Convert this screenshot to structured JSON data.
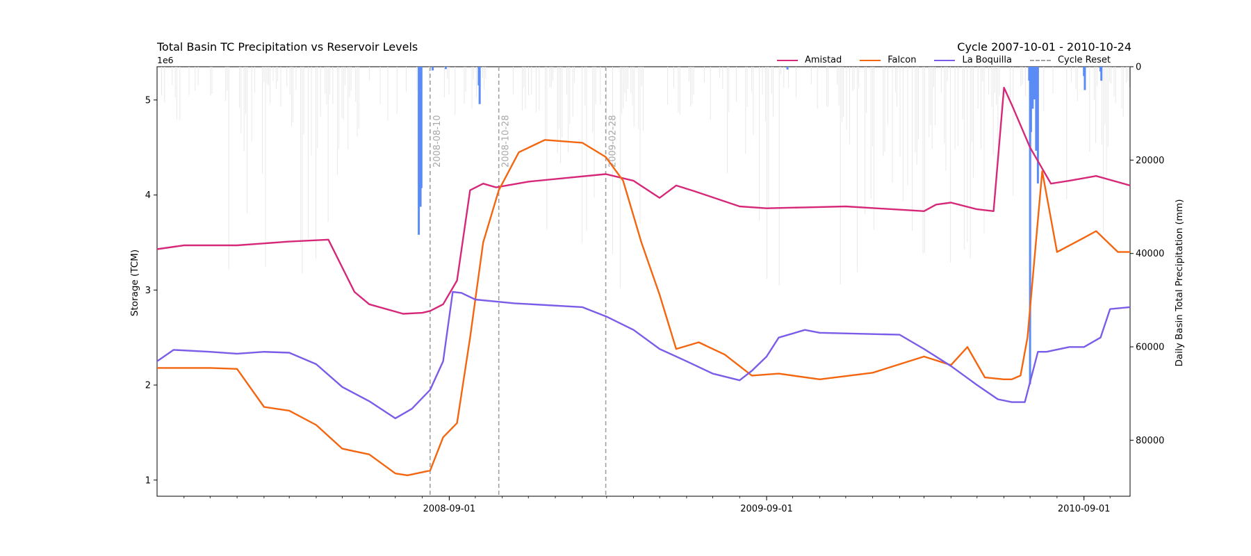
{
  "chart_data": {
    "type": "line",
    "title": "Total Basin TC Precipitation vs Reservoir Levels",
    "cycle_title": "Cycle 2007-10-01 - 2010-10-24",
    "ylabel": "Storage (TCM)",
    "ylabel_right": "Daily Basin Total Precipitation (mm)",
    "y_exponent_label": "1e6",
    "xlim": [
      "2007-10-01",
      "2010-10-24"
    ],
    "ylim": [
      0.83,
      5.35
    ],
    "ylim_right": [
      92000,
      0
    ],
    "x_ticks": [
      "2008-09-01",
      "2009-09-01",
      "2010-09-01"
    ],
    "y_ticks": [
      "1",
      "2",
      "3",
      "4",
      "5"
    ],
    "y_ticks_right": [
      "0",
      "20000",
      "40000",
      "60000",
      "80000"
    ],
    "legend_position": "top-right",
    "series": [
      {
        "name": "Amistad",
        "color": "#d62778",
        "x": [
          "2007-10-01",
          "2007-11-01",
          "2008-01-01",
          "2008-03-01",
          "2008-04-15",
          "2008-05-15",
          "2008-06-01",
          "2008-07-10",
          "2008-08-01",
          "2008-08-10",
          "2008-08-25",
          "2008-09-10",
          "2008-09-25",
          "2008-10-10",
          "2008-10-25",
          "2008-12-01",
          "2009-02-28",
          "2009-04-01",
          "2009-05-01",
          "2009-05-20",
          "2009-06-10",
          "2009-08-01",
          "2009-09-01",
          "2009-10-15",
          "2009-12-01",
          "2010-03-01",
          "2010-03-15",
          "2010-04-01",
          "2010-05-01",
          "2010-05-20",
          "2010-06-01",
          "2010-06-10",
          "2010-07-01",
          "2010-07-25",
          "2010-08-15",
          "2010-09-15",
          "2010-10-24"
        ],
        "values": [
          3.43,
          3.47,
          3.47,
          3.51,
          3.53,
          2.98,
          2.85,
          2.75,
          2.76,
          2.78,
          2.85,
          3.1,
          4.05,
          4.12,
          4.08,
          4.14,
          4.22,
          4.15,
          3.97,
          4.1,
          4.04,
          3.88,
          3.86,
          3.87,
          3.88,
          3.83,
          3.9,
          3.92,
          3.85,
          3.83,
          5.13,
          4.95,
          4.5,
          4.12,
          4.15,
          4.2,
          4.1
        ]
      },
      {
        "name": "Falcon",
        "color": "#f4650f",
        "x": [
          "2007-10-01",
          "2007-12-01",
          "2008-01-01",
          "2008-02-01",
          "2008-03-01",
          "2008-04-01",
          "2008-05-01",
          "2008-06-01",
          "2008-07-01",
          "2008-07-15",
          "2008-08-10",
          "2008-08-25",
          "2008-09-10",
          "2008-09-25",
          "2008-10-10",
          "2008-10-28",
          "2008-11-20",
          "2008-12-20",
          "2009-02-01",
          "2009-02-28",
          "2009-03-20",
          "2009-04-10",
          "2009-05-01",
          "2009-05-20",
          "2009-06-15",
          "2009-07-15",
          "2009-08-15",
          "2009-09-15",
          "2009-11-01",
          "2010-01-01",
          "2010-03-01",
          "2010-04-01",
          "2010-04-20",
          "2010-05-10",
          "2010-06-01",
          "2010-06-10",
          "2010-06-20",
          "2010-06-28",
          "2010-07-15",
          "2010-08-01",
          "2010-09-01",
          "2010-09-15",
          "2010-10-10",
          "2010-10-24"
        ],
        "values": [
          2.18,
          2.18,
          2.17,
          1.77,
          1.73,
          1.58,
          1.33,
          1.27,
          1.07,
          1.05,
          1.1,
          1.45,
          1.6,
          2.5,
          3.5,
          4.05,
          4.45,
          4.58,
          4.55,
          4.4,
          4.15,
          3.5,
          2.95,
          2.38,
          2.45,
          2.32,
          2.1,
          2.12,
          2.06,
          2.13,
          2.3,
          2.21,
          2.4,
          2.08,
          2.06,
          2.06,
          2.1,
          2.5,
          4.25,
          3.4,
          3.55,
          3.62,
          3.4,
          3.4
        ]
      },
      {
        "name": "La Boquilla",
        "color": "#7b5ce8",
        "x": [
          "2007-10-01",
          "2007-10-20",
          "2007-12-01",
          "2008-01-01",
          "2008-02-01",
          "2008-03-01",
          "2008-04-01",
          "2008-05-01",
          "2008-06-01",
          "2008-07-01",
          "2008-07-20",
          "2008-08-10",
          "2008-08-25",
          "2008-09-05",
          "2008-09-15",
          "2008-10-01",
          "2008-11-15",
          "2009-02-01",
          "2009-03-01",
          "2009-04-01",
          "2009-05-01",
          "2009-06-01",
          "2009-07-01",
          "2009-08-01",
          "2009-08-15",
          "2009-09-01",
          "2009-09-15",
          "2009-10-15",
          "2009-11-01",
          "2010-02-01",
          "2010-03-01",
          "2010-04-01",
          "2010-05-01",
          "2010-05-25",
          "2010-06-10",
          "2010-06-25",
          "2010-07-10",
          "2010-07-20",
          "2010-08-15",
          "2010-09-01",
          "2010-09-20",
          "2010-10-01",
          "2010-10-24"
        ],
        "values": [
          2.25,
          2.37,
          2.35,
          2.33,
          2.35,
          2.34,
          2.22,
          1.98,
          1.83,
          1.65,
          1.75,
          1.95,
          2.25,
          2.98,
          2.97,
          2.9,
          2.86,
          2.82,
          2.72,
          2.58,
          2.38,
          2.25,
          2.12,
          2.05,
          2.15,
          2.3,
          2.5,
          2.58,
          2.55,
          2.53,
          2.38,
          2.2,
          2.0,
          1.85,
          1.82,
          1.82,
          2.35,
          2.35,
          2.4,
          2.4,
          2.5,
          2.8,
          2.82
        ]
      }
    ],
    "cycle_resets": [
      {
        "date": "2008-08-10",
        "label": "2008-08-10"
      },
      {
        "date": "2008-10-28",
        "label": "2008-10-28"
      },
      {
        "date": "2009-02-28",
        "label": "2009-02-28"
      }
    ],
    "precipitation": {
      "color": "#5b8cf5",
      "background_color": "#e8e8e8",
      "events": [
        {
          "date": "2008-07-28",
          "value": 36000
        },
        {
          "date": "2008-07-29",
          "value": 15000
        },
        {
          "date": "2008-07-30",
          "value": 30000
        },
        {
          "date": "2008-07-31",
          "value": 26000
        },
        {
          "date": "2008-08-13",
          "value": 800
        },
        {
          "date": "2008-08-28",
          "value": 500
        },
        {
          "date": "2008-10-05",
          "value": 4000
        },
        {
          "date": "2008-10-06",
          "value": 8000
        },
        {
          "date": "2009-09-25",
          "value": 600
        },
        {
          "date": "2010-06-30",
          "value": 3000
        },
        {
          "date": "2010-07-01",
          "value": 68000
        },
        {
          "date": "2010-07-02",
          "value": 14000
        },
        {
          "date": "2010-07-04",
          "value": 9000
        },
        {
          "date": "2010-07-06",
          "value": 7000
        },
        {
          "date": "2010-07-08",
          "value": 18000
        },
        {
          "date": "2010-07-09",
          "value": 10000
        },
        {
          "date": "2010-07-10",
          "value": 25000
        },
        {
          "date": "2010-09-01",
          "value": 2000
        },
        {
          "date": "2010-09-02",
          "value": 5000
        },
        {
          "date": "2010-09-20",
          "value": 1000
        },
        {
          "date": "2010-09-21",
          "value": 3000
        }
      ]
    }
  },
  "legend": {
    "items": [
      {
        "label": "Amistad",
        "color": "#d62778",
        "style": "solid"
      },
      {
        "label": "Falcon",
        "color": "#f4650f",
        "style": "solid"
      },
      {
        "label": "La Boquilla",
        "color": "#7b5ce8",
        "style": "solid"
      },
      {
        "label": "Cycle Reset",
        "color": "#a0a0a0",
        "style": "dashed"
      }
    ]
  }
}
